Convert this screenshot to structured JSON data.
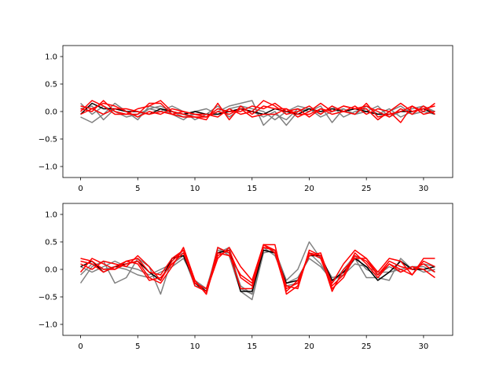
{
  "chart_data": [
    {
      "type": "line",
      "title": "",
      "xlabel": "",
      "ylabel": "",
      "xlim": [
        -1.55,
        32.55
      ],
      "ylim": [
        -1.2,
        1.2
      ],
      "xticks": [
        0,
        5,
        10,
        15,
        20,
        25,
        30
      ],
      "yticks": [
        -1.0,
        -0.5,
        0.0,
        0.5,
        1.0
      ],
      "xtick_labels": [
        "0",
        "5",
        "10",
        "15",
        "20",
        "25",
        "30"
      ],
      "ytick_labels": [
        "−1.0",
        "−0.5",
        "0.0",
        "0.5",
        "1.0"
      ],
      "grid": false,
      "x": [
        0,
        1,
        2,
        3,
        4,
        5,
        6,
        7,
        8,
        9,
        10,
        11,
        12,
        13,
        14,
        15,
        16,
        17,
        18,
        19,
        20,
        21,
        22,
        23,
        24,
        25,
        26,
        27,
        28,
        29,
        30,
        31
      ],
      "series": [
        {
          "color": "#808080",
          "values": [
            0.15,
            -0.05,
            0.1,
            0.0,
            -0.1,
            -0.05,
            0.05,
            0.1,
            0.0,
            -0.1,
            -0.05,
            -0.1,
            0.0,
            0.1,
            0.15,
            0.2,
            -0.25,
            -0.05,
            -0.15,
            0.05,
            0.0,
            0.1,
            -0.2,
            0.05,
            -0.05,
            0.0,
            0.1,
            -0.1,
            0.0,
            0.05,
            0.1,
            0.0
          ]
        },
        {
          "color": "#808080",
          "values": [
            -0.1,
            -0.2,
            -0.05,
            0.15,
            0.0,
            -0.1,
            0.05,
            0.0,
            0.1,
            0.0,
            -0.15,
            -0.05,
            0.1,
            -0.1,
            0.05,
            0.0,
            -0.1,
            0.0,
            -0.25,
            0.0,
            0.05,
            -0.05,
            0.1,
            -0.1,
            0.0,
            0.05,
            -0.15,
            0.0,
            0.1,
            -0.05,
            0.0,
            -0.05
          ]
        },
        {
          "color": "#808080",
          "values": [
            0.05,
            0.1,
            -0.15,
            0.05,
            0.0,
            -0.15,
            0.1,
            0.05,
            -0.05,
            -0.15,
            0.0,
            0.05,
            -0.05,
            0.05,
            0.1,
            0.05,
            0.0,
            -0.15,
            0.0,
            0.1,
            0.05,
            -0.1,
            0.0,
            0.05,
            -0.05,
            0.1,
            -0.05,
            0.05,
            -0.1,
            0.0,
            0.05,
            0.0
          ]
        },
        {
          "color": "#000000",
          "values": [
            -0.05,
            0.15,
            0.05,
            0.05,
            0.0,
            0.0,
            -0.05,
            0.05,
            0.0,
            -0.05,
            0.0,
            -0.05,
            -0.05,
            0.0,
            0.05,
            0.0,
            -0.05,
            0.05,
            0.0,
            -0.05,
            0.05,
            0.0,
            0.05,
            0.0,
            0.05,
            0.0,
            -0.05,
            -0.05,
            0.0,
            0.0,
            0.05,
            -0.05
          ]
        },
        {
          "color": "#ff0000",
          "values": [
            0.0,
            0.2,
            0.1,
            -0.05,
            -0.05,
            -0.05,
            0.15,
            0.15,
            -0.05,
            -0.1,
            -0.1,
            -0.15,
            0.15,
            -0.15,
            0.1,
            -0.05,
            0.1,
            0.05,
            0.05,
            -0.1,
            0.0,
            0.15,
            0.0,
            0.1,
            0.05,
            0.1,
            0.0,
            -0.1,
            0.05,
            -0.05,
            0.1,
            -0.05
          ]
        },
        {
          "color": "#ff0000",
          "values": [
            0.05,
            0.0,
            0.2,
            0.0,
            -0.05,
            0.05,
            0.1,
            0.2,
            0.0,
            -0.05,
            -0.1,
            -0.1,
            0.05,
            0.0,
            0.0,
            0.1,
            0.05,
            0.15,
            0.0,
            0.05,
            -0.1,
            0.05,
            0.0,
            0.1,
            0.05,
            0.05,
            -0.15,
            0.0,
            0.15,
            0.0,
            0.05,
            0.1
          ]
        },
        {
          "color": "#ff0000",
          "values": [
            -0.05,
            0.05,
            0.15,
            0.1,
            0.0,
            -0.1,
            0.0,
            -0.05,
            0.05,
            0.0,
            -0.05,
            -0.05,
            -0.1,
            0.05,
            -0.05,
            0.0,
            0.2,
            0.1,
            -0.05,
            0.0,
            0.1,
            -0.05,
            0.1,
            0.0,
            0.1,
            -0.05,
            0.05,
            0.0,
            -0.2,
            0.1,
            -0.05,
            0.0
          ]
        },
        {
          "color": "#ff0000",
          "values": [
            0.1,
            0.05,
            -0.05,
            0.05,
            0.05,
            0.0,
            -0.05,
            0.0,
            -0.05,
            0.0,
            -0.05,
            -0.1,
            0.0,
            -0.05,
            0.05,
            -0.1,
            -0.05,
            -0.05,
            0.05,
            -0.05,
            -0.05,
            0.05,
            -0.05,
            0.0,
            -0.05,
            0.15,
            -0.1,
            -0.05,
            0.0,
            0.1,
            0.0,
            0.15
          ]
        }
      ]
    },
    {
      "type": "line",
      "title": "",
      "xlabel": "",
      "ylabel": "",
      "xlim": [
        -1.55,
        32.55
      ],
      "ylim": [
        -1.2,
        1.2
      ],
      "xticks": [
        0,
        5,
        10,
        15,
        20,
        25,
        30
      ],
      "yticks": [
        -1.0,
        -0.5,
        0.0,
        0.5,
        1.0
      ],
      "xtick_labels": [
        "0",
        "5",
        "10",
        "15",
        "20",
        "25",
        "30"
      ],
      "ytick_labels": [
        "−1.0",
        "−0.5",
        "0.0",
        "0.5",
        "1.0"
      ],
      "grid": false,
      "x": [
        0,
        1,
        2,
        3,
        4,
        5,
        6,
        7,
        8,
        9,
        10,
        11,
        12,
        13,
        14,
        15,
        16,
        17,
        18,
        19,
        20,
        21,
        22,
        23,
        24,
        25,
        26,
        27,
        28,
        29,
        30,
        31
      ],
      "series": [
        {
          "color": "#808080",
          "values": [
            -0.25,
            0.05,
            0.15,
            -0.25,
            -0.15,
            0.2,
            0.05,
            -0.45,
            0.2,
            0.3,
            -0.2,
            -0.4,
            0.4,
            0.25,
            -0.4,
            -0.55,
            0.3,
            0.35,
            -0.2,
            0.0,
            0.5,
            0.2,
            -0.15,
            -0.1,
            0.2,
            -0.15,
            -0.15,
            -0.2,
            0.2,
            0.0,
            0.1,
            0.05
          ]
        },
        {
          "color": "#808080",
          "values": [
            0.05,
            -0.05,
            0.05,
            0.15,
            0.05,
            0.0,
            -0.1,
            0.0,
            0.1,
            0.25,
            -0.3,
            -0.35,
            0.35,
            0.3,
            -0.3,
            -0.45,
            0.35,
            0.3,
            -0.3,
            -0.25,
            0.3,
            0.1,
            -0.25,
            0.0,
            0.25,
            0.0,
            -0.1,
            0.05,
            -0.05,
            0.05,
            0.05,
            -0.05
          ]
        },
        {
          "color": "#808080",
          "values": [
            -0.1,
            0.1,
            0.0,
            0.05,
            0.0,
            -0.1,
            -0.15,
            -0.05,
            0.05,
            0.2,
            -0.2,
            -0.35,
            0.3,
            0.4,
            -0.35,
            -0.45,
            0.4,
            0.25,
            -0.25,
            -0.15,
            0.2,
            0.05,
            -0.2,
            -0.1,
            0.1,
            0.05,
            -0.05,
            -0.05,
            0.0,
            0.05,
            -0.05,
            0.0
          ]
        },
        {
          "color": "#000000",
          "values": [
            0.05,
            0.15,
            -0.05,
            0.05,
            0.1,
            0.15,
            -0.05,
            -0.2,
            0.2,
            0.25,
            -0.25,
            -0.4,
            0.3,
            0.35,
            -0.4,
            -0.4,
            0.35,
            0.3,
            -0.25,
            -0.2,
            0.25,
            0.25,
            -0.2,
            -0.05,
            0.2,
            0.05,
            -0.2,
            -0.05,
            0.15,
            0.0,
            0.0,
            0.05
          ]
        },
        {
          "color": "#ff0000",
          "values": [
            0.15,
            0.1,
            -0.05,
            0.05,
            0.15,
            0.2,
            -0.05,
            -0.1,
            0.2,
            0.35,
            -0.2,
            -0.45,
            0.4,
            0.3,
            -0.35,
            -0.35,
            0.45,
            0.3,
            -0.4,
            -0.2,
            0.25,
            0.3,
            -0.3,
            -0.1,
            0.3,
            0.1,
            -0.15,
            0.1,
            0.0,
            -0.1,
            0.15,
            0.05
          ]
        },
        {
          "color": "#ff0000",
          "values": [
            -0.05,
            0.2,
            0.1,
            0.0,
            0.15,
            0.1,
            -0.2,
            -0.15,
            0.1,
            0.3,
            -0.25,
            -0.35,
            0.25,
            0.35,
            -0.15,
            -0.3,
            0.4,
            0.35,
            -0.35,
            -0.25,
            0.3,
            0.2,
            -0.35,
            -0.15,
            0.25,
            0.15,
            -0.1,
            0.15,
            0.05,
            0.0,
            0.1,
            -0.05
          ]
        },
        {
          "color": "#ff0000",
          "values": [
            0.1,
            0.0,
            0.15,
            0.1,
            0.05,
            0.25,
            0.05,
            -0.2,
            0.15,
            0.35,
            -0.3,
            -0.4,
            0.2,
            0.4,
            0.05,
            -0.2,
            0.45,
            0.45,
            -0.45,
            -0.3,
            0.3,
            0.25,
            -0.25,
            0.1,
            0.35,
            0.2,
            -0.05,
            0.2,
            0.15,
            -0.1,
            0.2,
            0.2
          ]
        },
        {
          "color": "#ff0000",
          "values": [
            0.2,
            0.15,
            0.0,
            0.0,
            0.1,
            0.15,
            -0.15,
            -0.25,
            0.05,
            0.4,
            -0.2,
            -0.45,
            0.3,
            0.25,
            -0.1,
            -0.25,
            0.45,
            0.35,
            -0.3,
            -0.35,
            0.35,
            0.25,
            -0.4,
            0.0,
            0.2,
            0.2,
            -0.1,
            0.1,
            -0.05,
            0.05,
            0.0,
            -0.15
          ]
        }
      ]
    }
  ]
}
